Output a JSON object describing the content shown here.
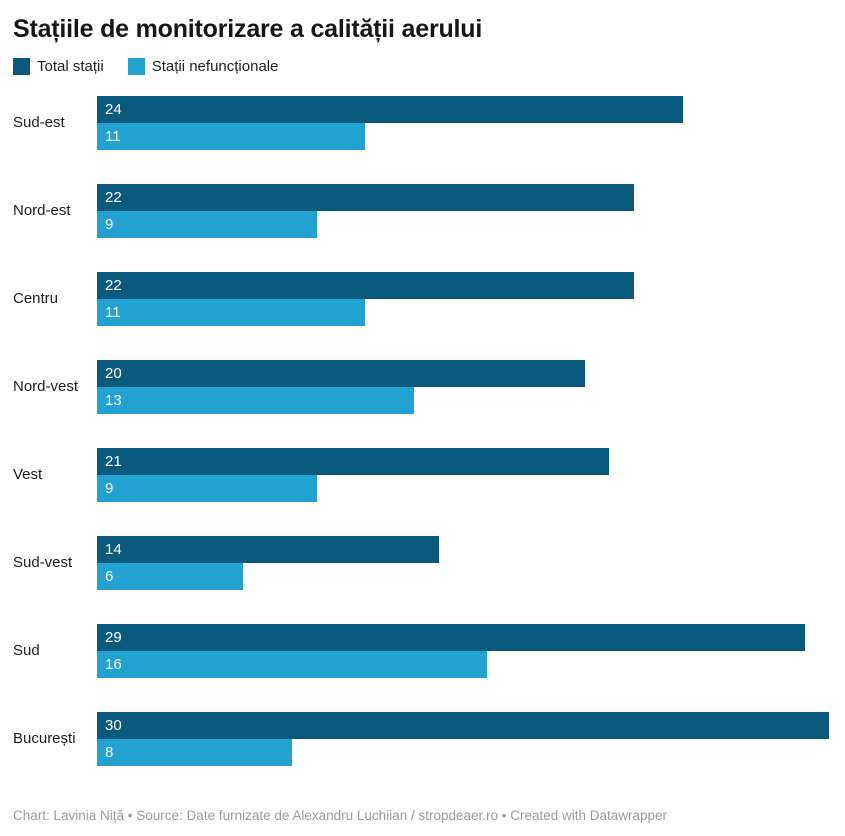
{
  "title": "Stațiile de monitorizare a calității aerului",
  "legend": {
    "items": [
      {
        "label": "Total stații",
        "color": "#0a5a7e"
      },
      {
        "label": "Stații nefuncționale",
        "color": "#22a2d1"
      }
    ]
  },
  "chart_data": {
    "type": "bar",
    "orientation": "horizontal",
    "title": "Stațiile de monitorizare a calității aerului",
    "categories": [
      "Sud-est",
      "Nord-est",
      "Centru",
      "Nord-vest",
      "Vest",
      "Sud-vest",
      "Sud",
      "București"
    ],
    "series": [
      {
        "name": "Total stații",
        "color": "#0a5a7e",
        "values": [
          24,
          22,
          22,
          20,
          21,
          14,
          29,
          30
        ]
      },
      {
        "name": "Stații nefuncționale",
        "color": "#22a2d1",
        "values": [
          11,
          9,
          11,
          13,
          9,
          6,
          16,
          8
        ]
      }
    ],
    "xlim": [
      0,
      30
    ],
    "grid": false,
    "value_labels": "inside-start-white",
    "legend_position": "top-left"
  },
  "footer": {
    "text": "Chart: Lavinia Niță • Source: Date furnizate de Alexandru Luchiian / stropdeaer.ro • Created with Datawrapper"
  }
}
